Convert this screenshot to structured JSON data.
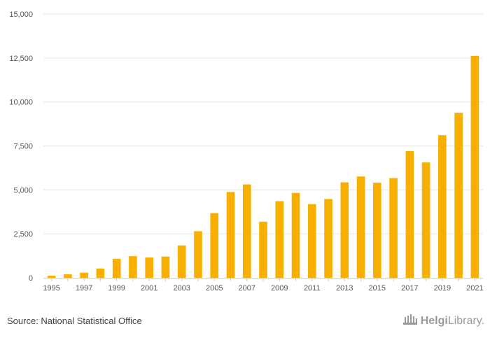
{
  "chart_data": {
    "type": "bar",
    "title": "",
    "xlabel": "",
    "ylabel": "",
    "categories": [
      "1995",
      "1996",
      "1997",
      "1998",
      "1999",
      "2000",
      "2001",
      "2002",
      "2003",
      "2004",
      "2005",
      "2006",
      "2007",
      "2008",
      "2009",
      "2010",
      "2011",
      "2012",
      "2013",
      "2014",
      "2015",
      "2016",
      "2017",
      "2018",
      "2019",
      "2020",
      "2021"
    ],
    "values": [
      120,
      200,
      290,
      530,
      1080,
      1230,
      1160,
      1210,
      1840,
      2650,
      3680,
      4880,
      5310,
      3190,
      4360,
      4830,
      4190,
      4480,
      5430,
      5760,
      5410,
      5670,
      7200,
      6560,
      8110,
      9380,
      12620
    ],
    "ylim": [
      0,
      15000
    ],
    "yticks": [
      0,
      2500,
      5000,
      7500,
      10000,
      12500,
      15000
    ],
    "ytick_labels": [
      "0",
      "2,500",
      "5,000",
      "7,500",
      "10,000",
      "12,500",
      "15,000"
    ],
    "xtick_labels": [
      "1995",
      "1997",
      "1999",
      "2001",
      "2003",
      "2005",
      "2007",
      "2009",
      "2011",
      "2013",
      "2015",
      "2017",
      "2019",
      "2021"
    ],
    "bar_color": "#f7b000",
    "grid": true
  },
  "footer": {
    "source": "Source: National Statistical Office",
    "logo_prefix": "Helgi",
    "logo_suffix": "Library",
    "logo_dot": "."
  },
  "colors": {
    "grid": "#e6e6e6",
    "axis": "#cccccc",
    "tick_text": "#555555"
  }
}
